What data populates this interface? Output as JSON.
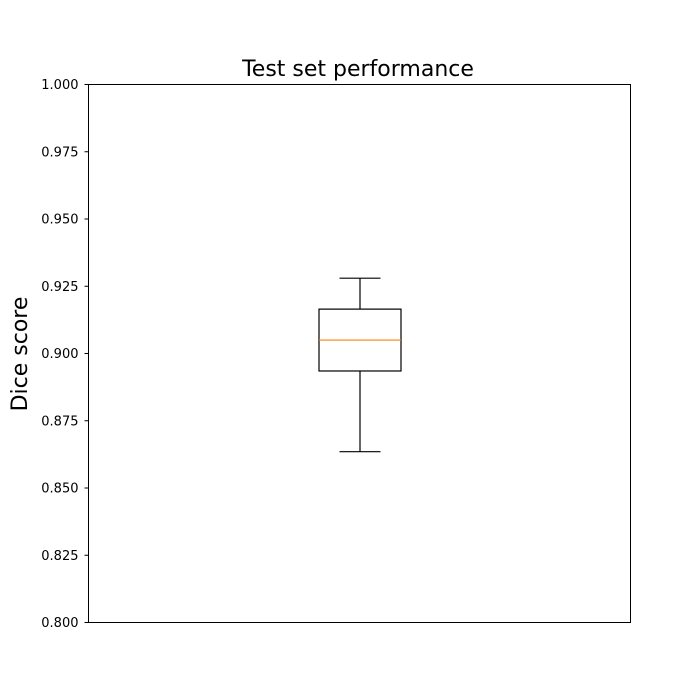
{
  "chart_data": {
    "type": "box",
    "title": "Test set performance",
    "xlabel": "",
    "ylabel": "Dice score",
    "ylim": [
      0.8,
      1.0
    ],
    "yticks": [
      0.8,
      0.825,
      0.85,
      0.875,
      0.9,
      0.925,
      0.95,
      0.975,
      1.0
    ],
    "ytick_labels": [
      "0.800",
      "0.825",
      "0.850",
      "0.875",
      "0.900",
      "0.925",
      "0.950",
      "0.975",
      "1.000"
    ],
    "grid": false,
    "boxes": [
      {
        "whisker_low": 0.8635,
        "q1": 0.8935,
        "median": 0.905,
        "q3": 0.9165,
        "whisker_high": 0.928
      }
    ],
    "colors": {
      "box": "#000000",
      "median": "#ff7f0e"
    }
  }
}
